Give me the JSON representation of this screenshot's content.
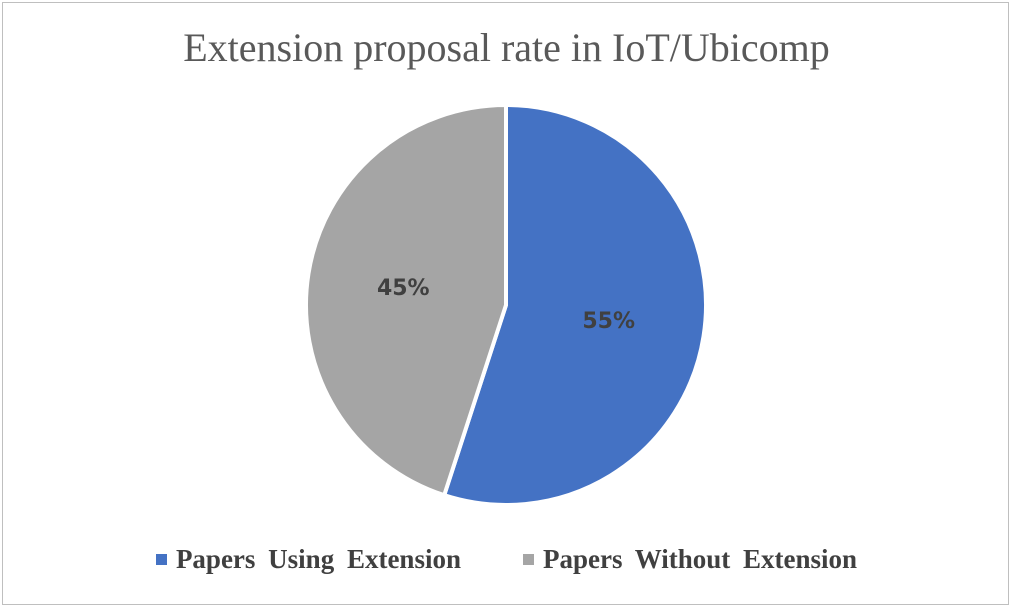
{
  "chart_data": {
    "type": "pie",
    "title": "Extension proposal rate in IoT/Ubicomp",
    "slices": [
      {
        "name": "Papers Using Extension",
        "value": 55,
        "label": "55%",
        "color": "#4472c4"
      },
      {
        "name": "Papers Without Extension",
        "value": 45,
        "label": "45%",
        "color": "#a5a5a5"
      }
    ],
    "legend_position": "bottom",
    "slice_border_color": "#ffffff"
  }
}
